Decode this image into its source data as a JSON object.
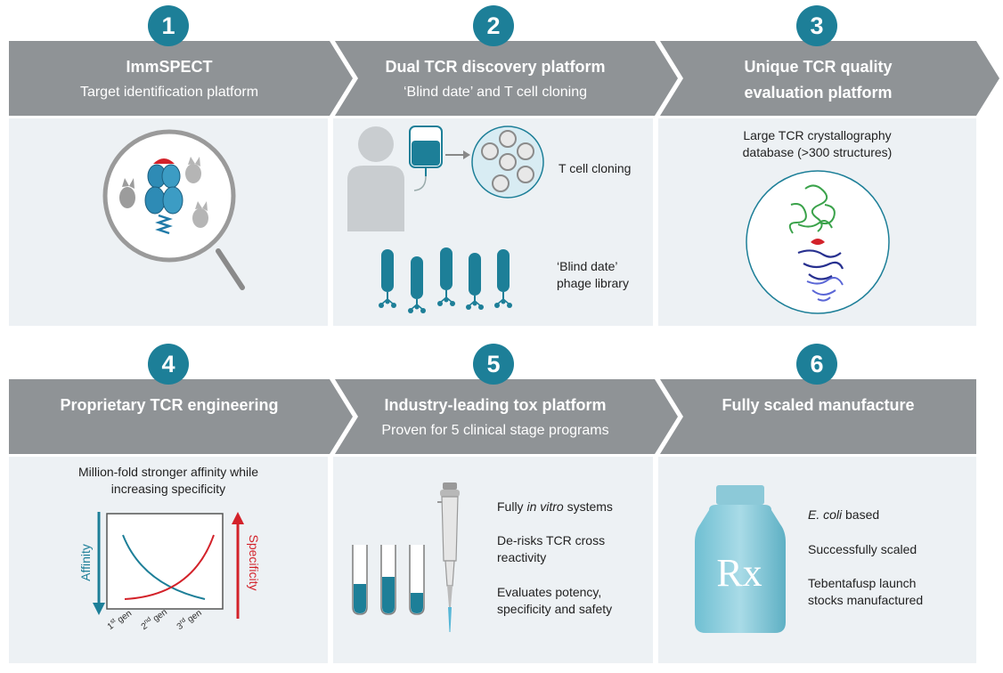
{
  "steps": [
    {
      "number": "1",
      "title": "ImmSPECT",
      "subtitle": "Target identification platform"
    },
    {
      "number": "2",
      "title": "Dual TCR discovery platform",
      "subtitle": "‘Blind date’ and T cell cloning"
    },
    {
      "number": "3",
      "title_line1": "Unique TCR quality",
      "title_line2": "evaluation platform"
    },
    {
      "number": "4",
      "title": "Proprietary TCR engineering"
    },
    {
      "number": "5",
      "title": "Industry-leading tox platform",
      "subtitle": "Proven for 5 clinical stage programs"
    },
    {
      "number": "6",
      "title": "Fully scaled manufacture"
    }
  ],
  "panel2": {
    "t_cell_cloning": "T cell cloning",
    "blind_date_line1": "‘Blind date’",
    "blind_date_line2": "phage library"
  },
  "panel3": {
    "caption_line1": "Large TCR crystallography",
    "caption_line2": "database (>300 structures)"
  },
  "panel4": {
    "caption_line1": "Million-fold stronger affinity while",
    "caption_line2": "increasing specificity",
    "y_left_label": "Affinity",
    "y_right_label": "Specificity",
    "x_ticks": [
      {
        "num": "1",
        "sup": "st",
        "word": " gen"
      },
      {
        "num": "2",
        "sup": "nd",
        "word": " gen"
      },
      {
        "num": "3",
        "sup": "rd",
        "word": " gen"
      }
    ]
  },
  "panel5": {
    "bullet1_pre": "Fully ",
    "bullet1_em": "in vitro",
    "bullet1_post": " systems",
    "bullet2_line1": "De-risks TCR cross",
    "bullet2_line2": "reactivity",
    "bullet3_line1": "Evaluates potency,",
    "bullet3_line2": "specificity and safety"
  },
  "panel6": {
    "bullet1_em": "E. coli",
    "bullet1_post": " based",
    "bullet2": "Successfully scaled",
    "bullet3_line1": "Tebentafusp launch",
    "bullet3_line2": "stocks manufactured",
    "bottle_symbol": "Rx"
  },
  "colors": {
    "teal": "#1d7f98",
    "header_gray": "#8f9396",
    "panel_bg": "#edf1f4",
    "red": "#d3222a"
  }
}
